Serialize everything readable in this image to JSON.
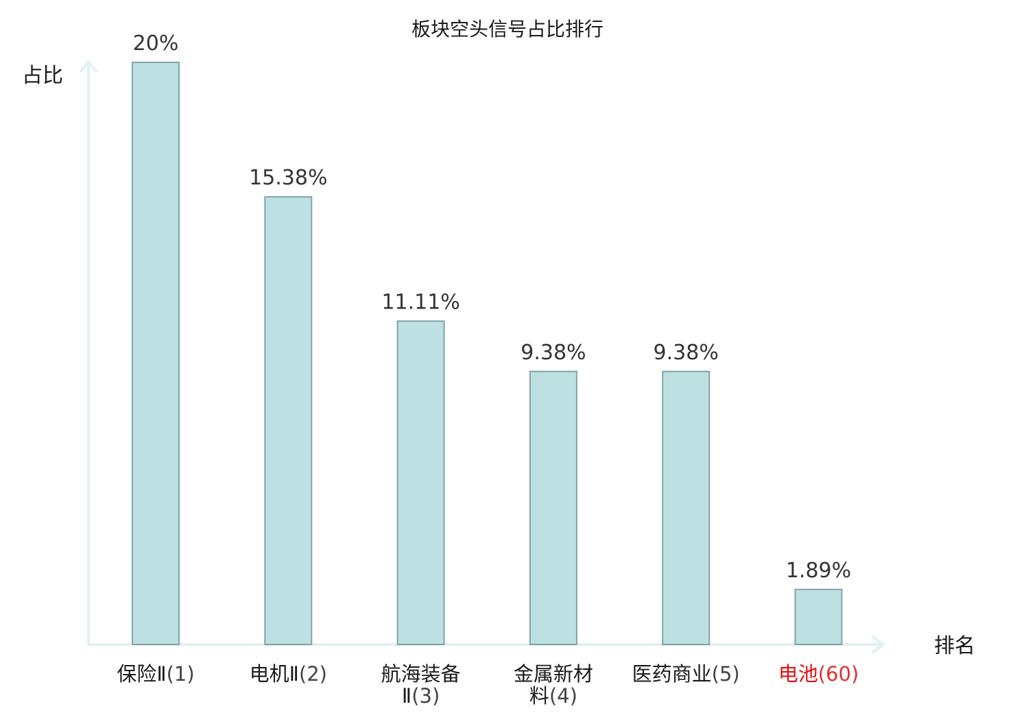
{
  "chart_data": {
    "type": "bar",
    "title": "板块空头信号占比排行",
    "xlabel": "排名",
    "ylabel": "占比",
    "ylim": [
      0,
      20
    ],
    "grid": false,
    "categories": [
      {
        "lines": [
          {
            "main": "保险Ⅱ",
            "sub": "(1)"
          }
        ],
        "highlight": false
      },
      {
        "lines": [
          {
            "main": "电机Ⅱ",
            "sub": "(2)"
          }
        ],
        "highlight": false
      },
      {
        "lines": [
          {
            "main": "航海装备",
            "sub": ""
          },
          {
            "main": "Ⅱ",
            "sub": "(3)"
          }
        ],
        "highlight": false
      },
      {
        "lines": [
          {
            "main": "金属新材",
            "sub": ""
          },
          {
            "main": "料",
            "sub": "(4)"
          }
        ],
        "highlight": false
      },
      {
        "lines": [
          {
            "main": "医药商业",
            "sub": "(5)"
          }
        ],
        "highlight": false
      },
      {
        "lines": [
          {
            "main": "电池",
            "sub": "(60)"
          }
        ],
        "highlight": true
      }
    ],
    "values": [
      20,
      15.38,
      11.11,
      9.38,
      9.38,
      1.89
    ],
    "value_labels": [
      "20%",
      "15.38%",
      "11.11%",
      "9.38%",
      "9.38%",
      "1.89%"
    ],
    "colors": {
      "bar_fill": "#bde1e3",
      "bar_stroke": "#82a3a5",
      "axis": "#dff2ef",
      "highlight_text": "#e01010"
    }
  }
}
